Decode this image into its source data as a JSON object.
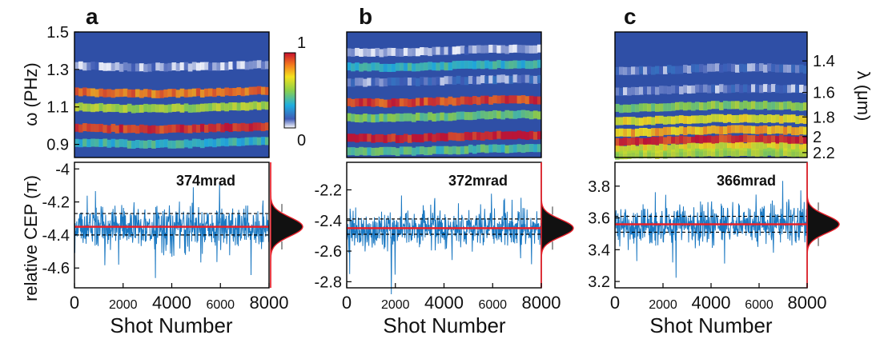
{
  "figure": {
    "panels": [
      {
        "letter": "a",
        "rms": "374mrad"
      },
      {
        "letter": "b",
        "rms": "372mrad"
      },
      {
        "letter": "c",
        "rms": "366mrad"
      }
    ],
    "colorbar": {
      "max_label": "1",
      "min_label": "0",
      "colormap": "jet"
    },
    "colors": {
      "spectrogram_bg": "#2f4fa6",
      "cep_trace": "#1a78c2",
      "mean_line": "#e8202a",
      "histogram": "#111111",
      "gaussian_fit": "#e8202a"
    }
  },
  "chart_data": [
    {
      "type": "heatmap",
      "panel": "a",
      "x": {
        "range": [
          0,
          8000
        ]
      },
      "y": {
        "label": "ω (PHz)",
        "ticks": [
          "1.5",
          "1.3",
          "1.1",
          "0.9"
        ],
        "tick_values": [
          1.5,
          1.3,
          1.1,
          0.9
        ],
        "range": [
          0.83,
          1.5
        ]
      },
      "bands": [
        {
          "y": 1.32,
          "intensity": 0.05
        },
        {
          "y": 1.18,
          "intensity": 0.85
        },
        {
          "y": 1.1,
          "intensity": 0.55
        },
        {
          "y": 0.99,
          "intensity": 0.95
        },
        {
          "y": 0.91,
          "intensity": 0.35
        }
      ]
    },
    {
      "type": "heatmap",
      "panel": "b",
      "x": {
        "range": [
          0,
          8000
        ]
      },
      "bands": [
        {
          "y": 1.4,
          "intensity": 0.05
        },
        {
          "y": 1.32,
          "intensity": 0.35
        },
        {
          "y": 1.24,
          "intensity": 0.1
        },
        {
          "y": 1.13,
          "intensity": 0.92
        },
        {
          "y": 1.05,
          "intensity": 0.45
        },
        {
          "y": 0.94,
          "intensity": 0.98
        },
        {
          "y": 0.87,
          "intensity": 0.4
        }
      ]
    },
    {
      "type": "heatmap",
      "panel": "c",
      "x": {
        "range": [
          0,
          8000
        ]
      },
      "y_right": {
        "label": "λ (μm)",
        "ticks": [
          "1.4",
          "1.6",
          "1.8",
          "2",
          "2.2"
        ]
      },
      "bands": [
        {
          "y": 1.3,
          "intensity": 0.1
        },
        {
          "y": 1.19,
          "intensity": 0.08
        },
        {
          "y": 1.1,
          "intensity": 0.5
        },
        {
          "y": 1.03,
          "intensity": 0.65
        },
        {
          "y": 0.97,
          "intensity": 0.75
        },
        {
          "y": 0.92,
          "intensity": 0.95
        },
        {
          "y": 0.88,
          "intensity": 0.65
        },
        {
          "y": 0.85,
          "intensity": 0.55
        }
      ]
    },
    {
      "type": "line",
      "panel": "a",
      "xlabel": "Shot Number",
      "ylabel": "relative CEP (π)",
      "x_ticks": [
        "0",
        "2000",
        "4000",
        "6000",
        "8000"
      ],
      "x_tick_values": [
        0,
        2000,
        4000,
        6000,
        8000
      ],
      "y_ticks": [
        "-4",
        "-4.2",
        "-4.4",
        "-4.6"
      ],
      "y_tick_values": [
        -4.0,
        -4.2,
        -4.4,
        -4.6
      ],
      "ylim": [
        -4.72,
        -3.96
      ],
      "xlim": [
        0,
        8000
      ],
      "mean": -4.35,
      "sigma": 0.119,
      "bounds": [
        -4.27,
        -4.4
      ],
      "annotation": "374mrad"
    },
    {
      "type": "line",
      "panel": "b",
      "xlabel": "Shot Number",
      "x_ticks": [
        "0",
        "2000",
        "4000",
        "6000",
        "8000"
      ],
      "x_tick_values": [
        0,
        2000,
        4000,
        6000,
        8000
      ],
      "y_ticks": [
        "-2.2",
        "-2.4",
        "-2.6",
        "-2.8"
      ],
      "y_tick_values": [
        -2.2,
        -2.4,
        -2.6,
        -2.8
      ],
      "ylim": [
        -2.84,
        -2.02
      ],
      "xlim": [
        0,
        8000
      ],
      "mean": -2.45,
      "sigma": 0.118,
      "bounds": [
        -2.39,
        -2.49
      ],
      "annotation": "372mrad"
    },
    {
      "type": "line",
      "panel": "c",
      "xlabel": "Shot Number",
      "x_ticks": [
        "0",
        "2000",
        "4000",
        "6000",
        "8000"
      ],
      "x_tick_values": [
        0,
        2000,
        4000,
        6000,
        8000
      ],
      "y_ticks": [
        "3.8",
        "3.6",
        "3.4",
        "3.2"
      ],
      "y_tick_values": [
        3.8,
        3.6,
        3.4,
        3.2
      ],
      "ylim": [
        3.16,
        3.95
      ],
      "xlim": [
        0,
        8000
      ],
      "mean": 3.56,
      "sigma": 0.116,
      "bounds": [
        3.61,
        3.51
      ],
      "annotation": "366mrad"
    }
  ]
}
